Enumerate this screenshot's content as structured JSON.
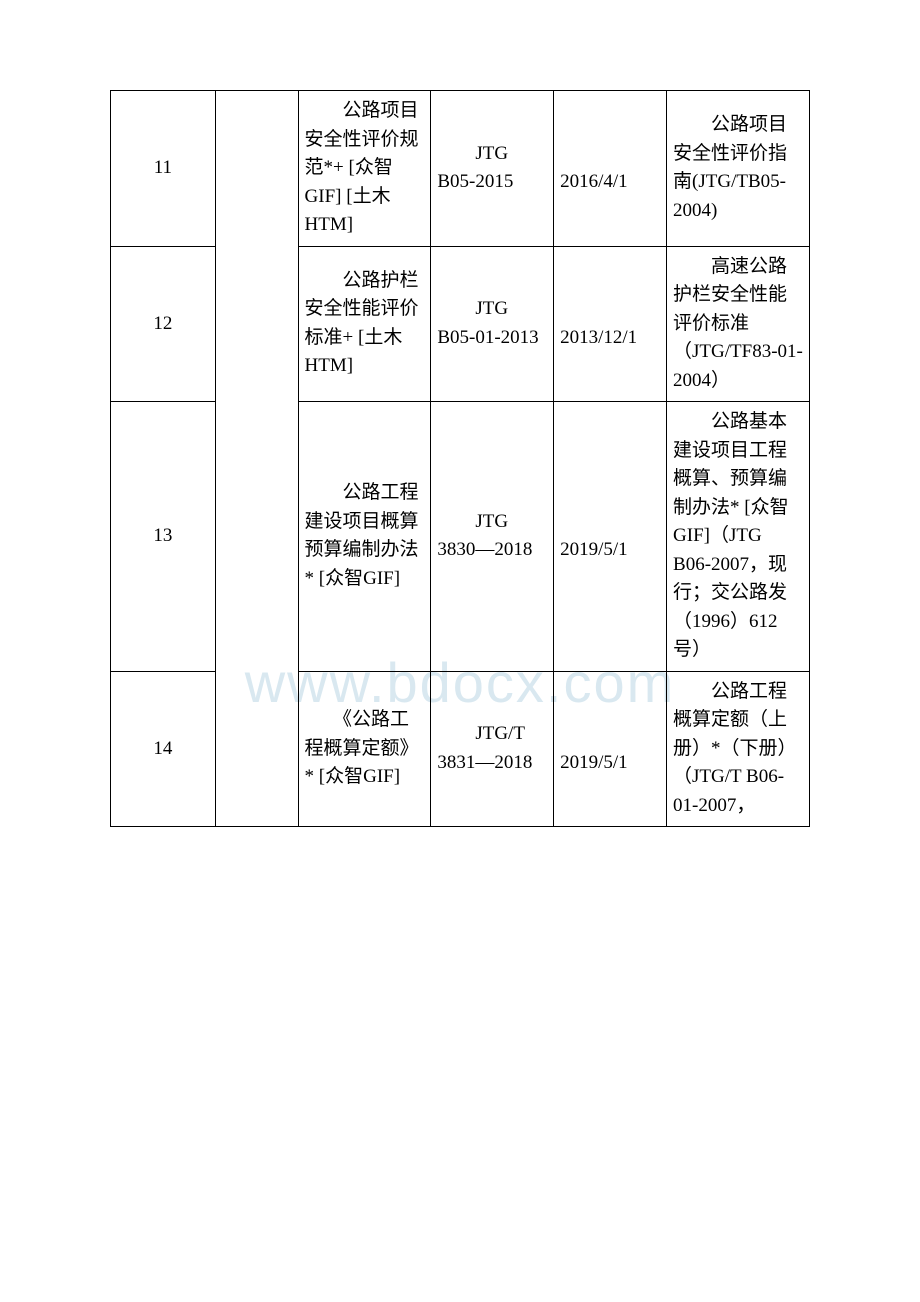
{
  "watermark": "www.bdocx.com",
  "table": {
    "columns": {
      "num_width": 92,
      "empty_width": 70,
      "name_width": 120,
      "code_width": 110,
      "date_width": 100,
      "note_width": 130
    },
    "text_color": "#000000",
    "border_color": "#000000",
    "watermark_color": "#d9e8f0",
    "background_color": "#ffffff",
    "font_size": 19,
    "rows": [
      {
        "num": "11",
        "name": "　　公路项目安全性评价规范*+ [众智 GIF] [土木HTM]",
        "code": "　　JTG B05-2015",
        "date": "　　2016/4/1",
        "note": "　　公路项目安全性评价指南(JTG/TB05-2004)"
      },
      {
        "num": "12",
        "name": "　　公路护栏安全性能评价标准+ [土木HTM]",
        "code": "　　JTG B05-01-2013",
        "date": "　　2013/12/1",
        "note": "　　高速公路护栏安全性能评价标准（JTG/TF83-01-2004）"
      },
      {
        "num": "13",
        "name": "　　公路工程建设项目概算预算编制办法* [众智GIF]",
        "code": "　　JTG 3830—2018",
        "date": "　　2019/5/1",
        "note": "　　公路基本建设项目工程概算、预算编制办法* [众智GIF]（JTG B06-2007，现行；交公路发（1996）612 号）"
      },
      {
        "num": "14",
        "name": "　　《公路工程概算定额》* [众智GIF]",
        "code": "　　JTG/T 3831—2018",
        "date": "　　2019/5/1",
        "note": "　　公路工程概算定额（上册）*（下册）（JTG/T B06-01-2007，"
      }
    ]
  }
}
